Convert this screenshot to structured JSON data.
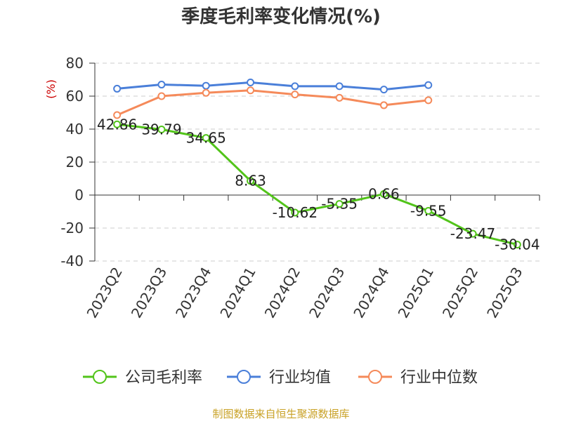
{
  "chart_data": {
    "type": "line",
    "title": "季度毛利率变化情况(%)",
    "ylabel": "(%)",
    "ylim": [
      -40,
      80
    ],
    "yticks": [
      80,
      60,
      40,
      20,
      0,
      -20,
      -40
    ],
    "grid": true,
    "legend_position": "bottom",
    "categories": [
      "2023Q2",
      "2023Q3",
      "2023Q4",
      "2024Q1",
      "2024Q2",
      "2024Q3",
      "2024Q4",
      "2025Q1",
      "2025Q2",
      "2025Q3"
    ],
    "series": [
      {
        "name": "公司毛利率",
        "color": "#52c41a",
        "values": [
          42.86,
          39.79,
          34.65,
          8.63,
          -10.62,
          -5.35,
          0.66,
          -9.55,
          -23.47,
          -30.04
        ],
        "labels": [
          "42.86",
          "39.79",
          "34.65",
          "8.63",
          "-10.62",
          "-5.35",
          "0.66",
          "-9.55",
          "-23.47",
          "-30.04"
        ]
      },
      {
        "name": "行业均值",
        "color": "#4a7fd9",
        "values": [
          64.5,
          67.0,
          66.3,
          68.3,
          66.0,
          66.0,
          64.0,
          66.7,
          null,
          null
        ]
      },
      {
        "name": "行业中位数",
        "color": "#f58a5a",
        "values": [
          48.5,
          60.0,
          62.0,
          63.5,
          61.0,
          59.0,
          54.5,
          57.5,
          null,
          null
        ]
      }
    ]
  },
  "footer": {
    "source": "制图数据来自恒生聚源数据库"
  }
}
